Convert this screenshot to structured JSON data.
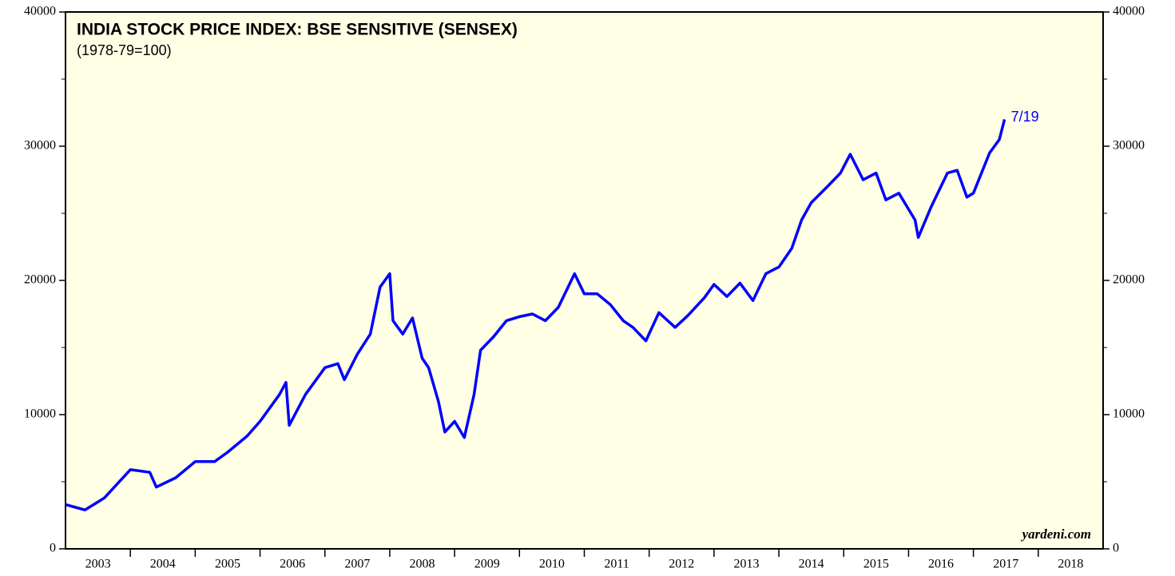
{
  "chart_data": {
    "type": "line",
    "title": "INDIA STOCK PRICE INDEX: BSE SENSITIVE (SENSEX)",
    "subtitle": "(1978-79=100)",
    "annotation": "7/19",
    "source": "yardeni.com",
    "background": "#ffffe6",
    "xlim": [
      2003,
      2019
    ],
    "xticks": [
      {
        "value": 2003.5,
        "label": "2003"
      },
      {
        "value": 2004.5,
        "label": "2004"
      },
      {
        "value": 2005.5,
        "label": "2005"
      },
      {
        "value": 2006.5,
        "label": "2006"
      },
      {
        "value": 2007.5,
        "label": "2007"
      },
      {
        "value": 2008.5,
        "label": "2008"
      },
      {
        "value": 2009.5,
        "label": "2009"
      },
      {
        "value": 2010.5,
        "label": "2010"
      },
      {
        "value": 2011.5,
        "label": "2011"
      },
      {
        "value": 2012.5,
        "label": "2012"
      },
      {
        "value": 2013.5,
        "label": "2013"
      },
      {
        "value": 2014.5,
        "label": "2014"
      },
      {
        "value": 2015.5,
        "label": "2015"
      },
      {
        "value": 2016.5,
        "label": "2016"
      },
      {
        "value": 2017.5,
        "label": "2017"
      },
      {
        "value": 2018.5,
        "label": "2018"
      }
    ],
    "ylim": [
      0,
      40000
    ],
    "yticks": [
      0,
      10000,
      20000,
      30000,
      40000
    ],
    "series": [
      {
        "name": "BSE Sensex",
        "color": "#0000ff",
        "x": [
          2003.0,
          2003.3,
          2003.6,
          2004.0,
          2004.3,
          2004.4,
          2004.7,
          2005.0,
          2005.3,
          2005.5,
          2005.8,
          2006.0,
          2006.3,
          2006.4,
          2006.45,
          2006.7,
          2007.0,
          2007.2,
          2007.3,
          2007.5,
          2007.7,
          2007.85,
          2008.0,
          2008.05,
          2008.2,
          2008.35,
          2008.5,
          2008.6,
          2008.75,
          2008.85,
          2009.0,
          2009.15,
          2009.3,
          2009.4,
          2009.6,
          2009.8,
          2010.0,
          2010.2,
          2010.4,
          2010.6,
          2010.85,
          2011.0,
          2011.2,
          2011.4,
          2011.6,
          2011.75,
          2011.95,
          2012.15,
          2012.4,
          2012.6,
          2012.85,
          2013.0,
          2013.2,
          2013.4,
          2013.6,
          2013.8,
          2014.0,
          2014.2,
          2014.35,
          2014.5,
          2014.75,
          2014.95,
          2015.1,
          2015.3,
          2015.5,
          2015.65,
          2015.85,
          2016.1,
          2016.15,
          2016.35,
          2016.6,
          2016.75,
          2016.9,
          2017.0,
          2017.25,
          2017.4,
          2017.48
        ],
        "values": [
          3300,
          2900,
          3800,
          5900,
          5700,
          4600,
          5300,
          6500,
          6500,
          7200,
          8400,
          9500,
          11500,
          12400,
          9200,
          11500,
          13500,
          13800,
          12600,
          14500,
          16000,
          19500,
          20500,
          17000,
          16000,
          17200,
          14200,
          13500,
          11000,
          8700,
          9500,
          8300,
          11500,
          14800,
          15800,
          17000,
          17300,
          17500,
          17000,
          18000,
          20500,
          19000,
          19000,
          18200,
          17000,
          16500,
          15500,
          17600,
          16500,
          17400,
          18700,
          19700,
          18800,
          19800,
          18500,
          20500,
          21000,
          22400,
          24500,
          25800,
          27000,
          28000,
          29400,
          27500,
          28000,
          26000,
          26500,
          24500,
          23200,
          25500,
          28000,
          28200,
          26200,
          26500,
          29500,
          30500,
          32000
        ]
      }
    ]
  }
}
